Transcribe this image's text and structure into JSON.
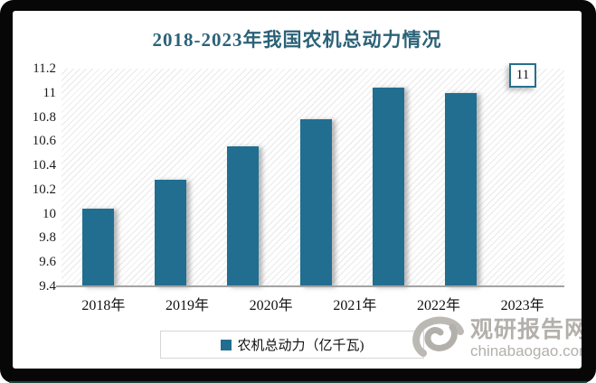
{
  "title": "2018-2023年我国农机总动力情况",
  "chart_data": {
    "type": "bar",
    "title": "2018-2023年我国农机总动力情况",
    "categories": [
      "2018年",
      "2019年",
      "2020年",
      "2021年",
      "2022年",
      "2023年"
    ],
    "values": [
      10.04,
      10.28,
      10.56,
      10.78,
      11.04,
      11
    ],
    "series_name": "农机总动力（亿千瓦)",
    "ylim": [
      9.4,
      11.2
    ],
    "ytick_labels": [
      "11.2",
      "11",
      "10.8",
      "10.6",
      "10.4",
      "10.2",
      "10",
      "9.8",
      "9.6",
      "9.4"
    ],
    "data_label": {
      "category": "2023年",
      "text": "11"
    },
    "bar_color": "#216e91",
    "grid": false,
    "plot_background": "diagonal-hatch",
    "legend_position": "bottom"
  },
  "legend": {
    "label": "农机总动力（亿千瓦)",
    "swatch_color": "#216e91"
  },
  "watermark": {
    "site_name": "观研报告网",
    "domain": "chinabaogao.com"
  }
}
